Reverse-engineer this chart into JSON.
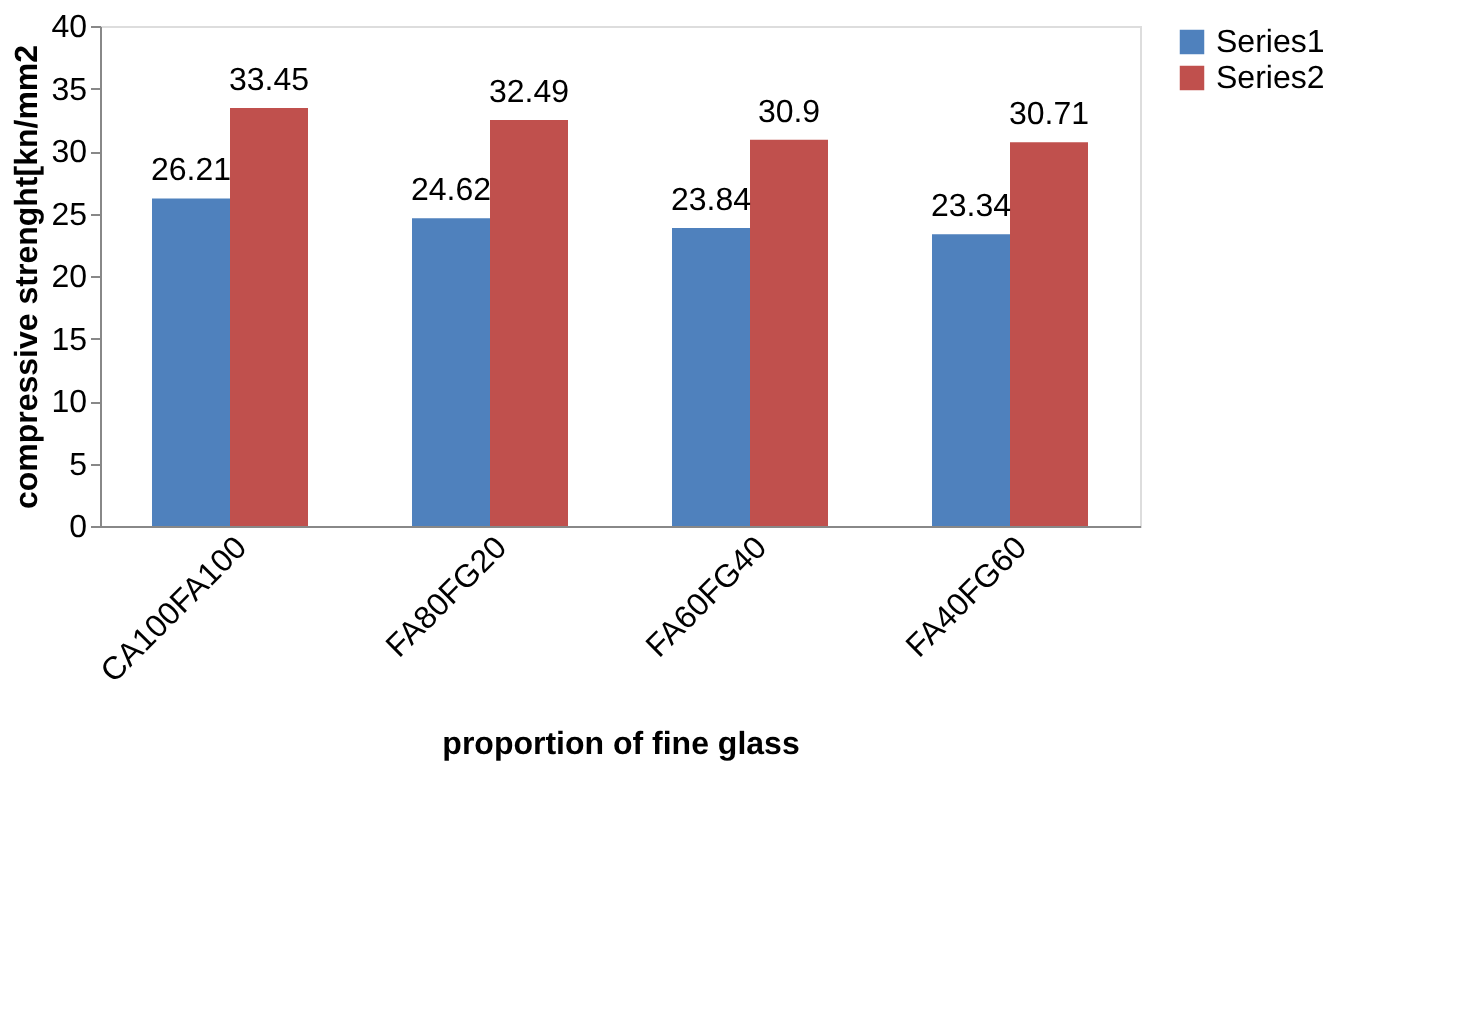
{
  "chart_data": {
    "type": "bar",
    "xlabel": "proportion of fine glass",
    "ylabel": "compressive strenght[kn/mm2",
    "categories": [
      "CA100FA100",
      "FA80FG20",
      "FA60FG40",
      "FA40FG60"
    ],
    "series": [
      {
        "name": "Series1",
        "color": "#4f81bd",
        "values": [
          26.21,
          24.62,
          23.84,
          23.34
        ]
      },
      {
        "name": "Series2",
        "color": "#c0504d",
        "values": [
          33.45,
          32.49,
          30.9,
          30.71
        ]
      }
    ],
    "ylim": [
      0,
      40
    ],
    "yticks": [
      0,
      5,
      10,
      15,
      20,
      25,
      30,
      35,
      40
    ],
    "grid": false,
    "legend": "right",
    "data_labels": true
  }
}
